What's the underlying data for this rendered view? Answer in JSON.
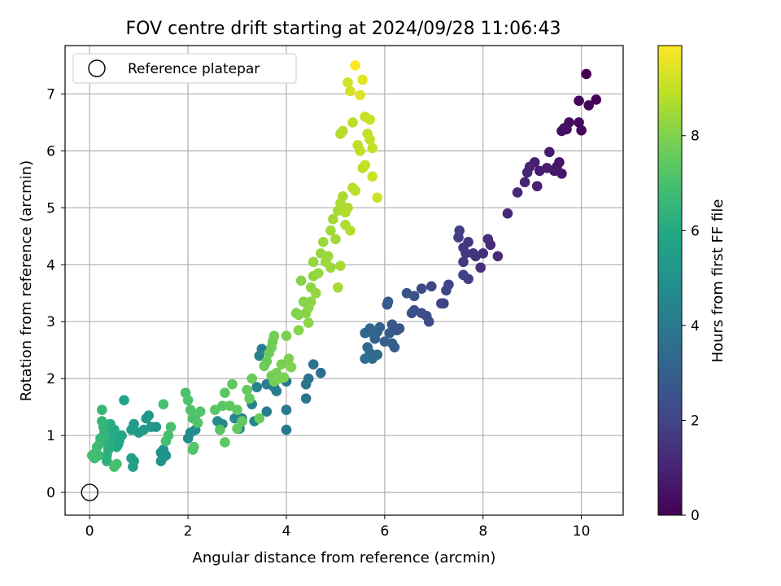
{
  "chart_data": {
    "type": "scatter",
    "title": "FOV centre drift starting at 2024/09/28 11:06:43",
    "xlabel": "Angular distance from reference (arcmin)",
    "ylabel": "Rotation from reference (arcmin)",
    "xlim": [
      -0.5,
      10.85
    ],
    "ylim": [
      -0.4,
      7.85
    ],
    "xticks": [
      0,
      2,
      4,
      6,
      8,
      10
    ],
    "yticks": [
      0,
      1,
      2,
      3,
      4,
      5,
      6,
      7
    ],
    "grid": true,
    "legend": {
      "placement": "top-left",
      "entries": [
        "Reference platepar"
      ]
    },
    "reference_point": {
      "name": "Reference platepar",
      "x": 0,
      "y": 0
    },
    "colorbar": {
      "label": "Hours from first FF file",
      "colormap": "viridis",
      "range": [
        0,
        9.9
      ],
      "ticks": [
        0,
        2,
        4,
        6,
        8
      ]
    },
    "series": [
      {
        "color_value": "hours",
        "points": [
          [
            10.1,
            7.35,
            0.0
          ],
          [
            10.3,
            6.9,
            0.05
          ],
          [
            10.15,
            6.8,
            0.1
          ],
          [
            9.95,
            6.88,
            0.15
          ],
          [
            10.0,
            6.36,
            0.2
          ],
          [
            9.95,
            6.5,
            0.25
          ],
          [
            9.75,
            6.5,
            0.3
          ],
          [
            9.7,
            6.38,
            0.35
          ],
          [
            9.6,
            6.35,
            0.4
          ],
          [
            9.65,
            6.4,
            0.45
          ],
          [
            9.55,
            5.8,
            0.5
          ],
          [
            9.5,
            5.72,
            0.55
          ],
          [
            9.45,
            5.65,
            0.6
          ],
          [
            9.6,
            5.6,
            0.65
          ],
          [
            9.35,
            5.98,
            0.7
          ],
          [
            9.3,
            5.7,
            0.75
          ],
          [
            9.15,
            5.65,
            0.8
          ],
          [
            9.05,
            5.8,
            0.85
          ],
          [
            9.1,
            5.38,
            0.9
          ],
          [
            8.95,
            5.72,
            0.95
          ],
          [
            8.9,
            5.62,
            1.0
          ],
          [
            8.85,
            5.45,
            1.05
          ],
          [
            8.7,
            5.27,
            1.1
          ],
          [
            8.5,
            4.9,
            1.15
          ],
          [
            8.3,
            4.15,
            1.2
          ],
          [
            8.15,
            4.35,
            1.25
          ],
          [
            8.1,
            4.45,
            1.3
          ],
          [
            8.0,
            4.2,
            1.35
          ],
          [
            7.95,
            3.95,
            1.4
          ],
          [
            7.85,
            4.15,
            1.45
          ],
          [
            7.8,
            4.2,
            1.5
          ],
          [
            7.7,
            4.4,
            1.55
          ],
          [
            7.65,
            4.2,
            1.6
          ],
          [
            7.6,
            4.3,
            1.65
          ],
          [
            7.6,
            4.05,
            1.7
          ],
          [
            7.5,
            4.48,
            1.75
          ],
          [
            7.52,
            4.6,
            1.8
          ],
          [
            7.7,
            3.75,
            1.85
          ],
          [
            7.6,
            3.82,
            1.9
          ],
          [
            7.3,
            3.65,
            1.95
          ],
          [
            7.25,
            3.55,
            2.0
          ],
          [
            7.2,
            3.32,
            2.05
          ],
          [
            7.15,
            3.32,
            2.1
          ],
          [
            6.95,
            3.62,
            2.15
          ],
          [
            6.75,
            3.58,
            2.2
          ],
          [
            6.9,
            3.0,
            2.25
          ],
          [
            6.85,
            3.1,
            2.3
          ],
          [
            6.75,
            3.15,
            2.35
          ],
          [
            6.6,
            3.2,
            2.4
          ],
          [
            6.55,
            3.15,
            2.45
          ],
          [
            6.6,
            3.45,
            2.5
          ],
          [
            6.45,
            3.5,
            2.55
          ],
          [
            6.3,
            2.88,
            2.6
          ],
          [
            6.25,
            2.85,
            2.65
          ],
          [
            6.15,
            2.95,
            2.7
          ],
          [
            6.1,
            2.8,
            2.75
          ],
          [
            6.05,
            3.3,
            2.8
          ],
          [
            6.07,
            3.35,
            2.85
          ],
          [
            6.2,
            2.55,
            2.9
          ],
          [
            6.15,
            2.62,
            2.95
          ],
          [
            6.0,
            2.65,
            3.0
          ],
          [
            5.9,
            2.9,
            3.05
          ],
          [
            5.85,
            2.82,
            3.1
          ],
          [
            5.8,
            2.7,
            3.15
          ],
          [
            5.75,
            2.8,
            3.2
          ],
          [
            5.7,
            2.88,
            3.25
          ],
          [
            5.6,
            2.8,
            3.3
          ],
          [
            5.65,
            2.55,
            3.35
          ],
          [
            5.7,
            2.45,
            3.4
          ],
          [
            5.75,
            2.35,
            3.45
          ],
          [
            5.8,
            2.4,
            3.5
          ],
          [
            5.85,
            2.42,
            3.55
          ],
          [
            5.6,
            2.35,
            3.6
          ],
          [
            4.7,
            2.1,
            3.65
          ],
          [
            4.55,
            2.25,
            3.7
          ],
          [
            4.45,
            2.0,
            3.75
          ],
          [
            4.4,
            1.9,
            3.8
          ],
          [
            4.4,
            1.65,
            3.85
          ],
          [
            4.0,
            1.95,
            3.9
          ],
          [
            4.0,
            1.45,
            3.95
          ],
          [
            4.0,
            1.1,
            4.0
          ],
          [
            3.8,
            1.78,
            4.05
          ],
          [
            3.75,
            1.85,
            4.1
          ],
          [
            3.6,
            1.9,
            4.15
          ],
          [
            3.6,
            1.42,
            4.2
          ],
          [
            3.5,
            2.52,
            4.25
          ],
          [
            3.45,
            2.4,
            4.3
          ],
          [
            3.4,
            1.85,
            4.35
          ],
          [
            3.3,
            1.55,
            4.4
          ],
          [
            3.35,
            1.25,
            4.45
          ],
          [
            3.1,
            1.3,
            4.5
          ],
          [
            3.05,
            1.12,
            4.55
          ],
          [
            2.95,
            1.3,
            4.6
          ],
          [
            2.7,
            1.2,
            4.65
          ],
          [
            2.6,
            1.25,
            4.7
          ],
          [
            2.15,
            1.1,
            4.75
          ],
          [
            2.05,
            1.05,
            4.8
          ],
          [
            2.0,
            0.95,
            4.85
          ],
          [
            1.55,
            0.65,
            4.9
          ],
          [
            1.5,
            0.75,
            4.95
          ],
          [
            1.45,
            0.7,
            5.0
          ],
          [
            1.5,
            0.62,
            5.05
          ],
          [
            1.45,
            0.55,
            5.1
          ],
          [
            1.35,
            1.15,
            5.15
          ],
          [
            1.25,
            1.15,
            5.2
          ],
          [
            1.2,
            1.35,
            5.25
          ],
          [
            1.15,
            1.3,
            5.3
          ],
          [
            1.1,
            1.1,
            5.35
          ],
          [
            1.0,
            1.05,
            5.4
          ],
          [
            0.9,
            1.2,
            5.45
          ],
          [
            0.85,
            1.1,
            5.5
          ],
          [
            0.85,
            0.6,
            5.55
          ],
          [
            0.9,
            0.55,
            5.6
          ],
          [
            0.88,
            0.45,
            5.65
          ],
          [
            0.7,
            1.62,
            5.7
          ],
          [
            0.65,
            1.0,
            5.75
          ],
          [
            0.6,
            0.9,
            5.8
          ],
          [
            0.58,
            0.85,
            5.85
          ],
          [
            0.55,
            0.8,
            5.9
          ],
          [
            0.5,
            1.1,
            5.95
          ],
          [
            0.48,
            0.98,
            6.0
          ],
          [
            0.45,
            1.05,
            6.05
          ],
          [
            0.42,
            1.2,
            6.1
          ],
          [
            0.4,
            0.85,
            6.15
          ],
          [
            0.38,
            0.75,
            6.2
          ],
          [
            0.35,
            0.55,
            6.25
          ],
          [
            0.35,
            0.65,
            6.3
          ],
          [
            0.32,
            0.9,
            6.35
          ],
          [
            0.3,
            1.05,
            6.4
          ],
          [
            0.28,
            1.15,
            6.45
          ],
          [
            0.25,
            1.25,
            6.5
          ],
          [
            0.25,
            1.45,
            6.55
          ],
          [
            0.22,
            0.95,
            6.6
          ],
          [
            0.2,
            0.85,
            6.65
          ],
          [
            0.18,
            0.65,
            6.7
          ],
          [
            0.15,
            0.8,
            6.75
          ],
          [
            0.12,
            0.7,
            6.8
          ],
          [
            0.1,
            0.6,
            6.85
          ],
          [
            0.05,
            0.65,
            6.9
          ],
          [
            0.5,
            0.45,
            6.92
          ],
          [
            0.55,
            0.5,
            6.94
          ],
          [
            1.55,
            0.9,
            6.95
          ],
          [
            1.6,
            1.0,
            6.98
          ],
          [
            1.65,
            1.15,
            7.0
          ],
          [
            1.5,
            1.55,
            7.02
          ],
          [
            1.95,
            1.75,
            7.05
          ],
          [
            2.0,
            1.62,
            7.08
          ],
          [
            2.05,
            1.45,
            7.1
          ],
          [
            2.1,
            1.3,
            7.12
          ],
          [
            2.15,
            1.35,
            7.15
          ],
          [
            2.2,
            1.22,
            7.18
          ],
          [
            2.25,
            1.42,
            7.2
          ],
          [
            2.1,
            0.75,
            7.22
          ],
          [
            2.12,
            0.8,
            7.25
          ],
          [
            2.65,
            1.1,
            7.28
          ],
          [
            2.55,
            1.45,
            7.3
          ],
          [
            2.7,
            1.52,
            7.32
          ],
          [
            2.75,
            1.75,
            7.35
          ],
          [
            2.75,
            0.88,
            7.38
          ],
          [
            2.85,
            1.52,
            7.4
          ],
          [
            2.9,
            1.9,
            7.42
          ],
          [
            3.0,
            1.45,
            7.45
          ],
          [
            3.0,
            1.12,
            7.48
          ],
          [
            3.1,
            1.25,
            7.5
          ],
          [
            3.2,
            1.8,
            7.52
          ],
          [
            3.25,
            1.65,
            7.55
          ],
          [
            3.3,
            2.0,
            7.58
          ],
          [
            3.45,
            1.3,
            7.6
          ],
          [
            3.55,
            2.22,
            7.62
          ],
          [
            3.6,
            2.3,
            7.65
          ],
          [
            3.65,
            2.45,
            7.68
          ],
          [
            3.7,
            2.55,
            7.7
          ],
          [
            3.72,
            2.65,
            7.72
          ],
          [
            3.75,
            2.75,
            7.75
          ],
          [
            3.7,
            2.05,
            7.78
          ],
          [
            3.75,
            1.95,
            7.8
          ],
          [
            3.8,
            2.1,
            7.82
          ],
          [
            3.85,
            2.0,
            7.85
          ],
          [
            3.9,
            2.25,
            7.88
          ],
          [
            3.95,
            2.02,
            7.9
          ],
          [
            4.0,
            2.75,
            7.92
          ],
          [
            4.05,
            2.35,
            7.95
          ],
          [
            4.1,
            2.2,
            7.98
          ],
          [
            4.2,
            3.15,
            8.0
          ],
          [
            4.25,
            3.12,
            8.02
          ],
          [
            4.25,
            2.85,
            8.05
          ],
          [
            4.3,
            3.72,
            8.08
          ],
          [
            4.35,
            3.35,
            8.1
          ],
          [
            4.4,
            3.15,
            8.12
          ],
          [
            4.45,
            3.25,
            8.15
          ],
          [
            4.45,
            2.98,
            8.18
          ],
          [
            4.5,
            3.35,
            8.2
          ],
          [
            4.5,
            3.6,
            8.22
          ],
          [
            4.55,
            3.8,
            8.25
          ],
          [
            4.55,
            4.05,
            8.28
          ],
          [
            4.6,
            3.5,
            8.3
          ],
          [
            4.65,
            3.85,
            8.32
          ],
          [
            4.7,
            4.2,
            8.35
          ],
          [
            4.75,
            4.4,
            8.38
          ],
          [
            4.8,
            4.05,
            8.4
          ],
          [
            4.85,
            4.15,
            8.42
          ],
          [
            4.9,
            3.95,
            8.45
          ],
          [
            4.9,
            4.6,
            8.48
          ],
          [
            4.95,
            4.8,
            8.5
          ],
          [
            5.0,
            4.45,
            8.52
          ],
          [
            5.05,
            4.95,
            8.55
          ],
          [
            5.05,
            3.6,
            8.58
          ],
          [
            5.1,
            3.98,
            8.6
          ],
          [
            5.1,
            5.08,
            8.62
          ],
          [
            5.15,
            5.2,
            8.65
          ],
          [
            5.2,
            4.7,
            8.68
          ],
          [
            5.2,
            4.92,
            8.7
          ],
          [
            5.25,
            5.0,
            8.72
          ],
          [
            5.3,
            4.6,
            8.75
          ],
          [
            5.1,
            6.3,
            8.78
          ],
          [
            5.15,
            6.35,
            8.8
          ],
          [
            5.35,
            5.35,
            8.82
          ],
          [
            5.4,
            5.3,
            8.85
          ],
          [
            5.35,
            6.5,
            8.88
          ],
          [
            5.45,
            6.1,
            8.9
          ],
          [
            5.5,
            6.0,
            8.92
          ],
          [
            5.55,
            5.7,
            8.95
          ],
          [
            5.6,
            5.75,
            8.98
          ],
          [
            5.65,
            6.3,
            9.0
          ],
          [
            5.7,
            6.2,
            9.02
          ],
          [
            5.75,
            6.05,
            9.05
          ],
          [
            5.6,
            6.6,
            9.08
          ],
          [
            5.7,
            6.55,
            9.1
          ],
          [
            5.75,
            5.55,
            9.12
          ],
          [
            5.85,
            5.18,
            9.15
          ],
          [
            5.25,
            7.2,
            9.2
          ],
          [
            5.3,
            7.05,
            9.3
          ],
          [
            5.5,
            6.98,
            9.4
          ],
          [
            5.55,
            7.25,
            9.5
          ],
          [
            5.4,
            7.5,
            9.9
          ]
        ]
      }
    ]
  }
}
